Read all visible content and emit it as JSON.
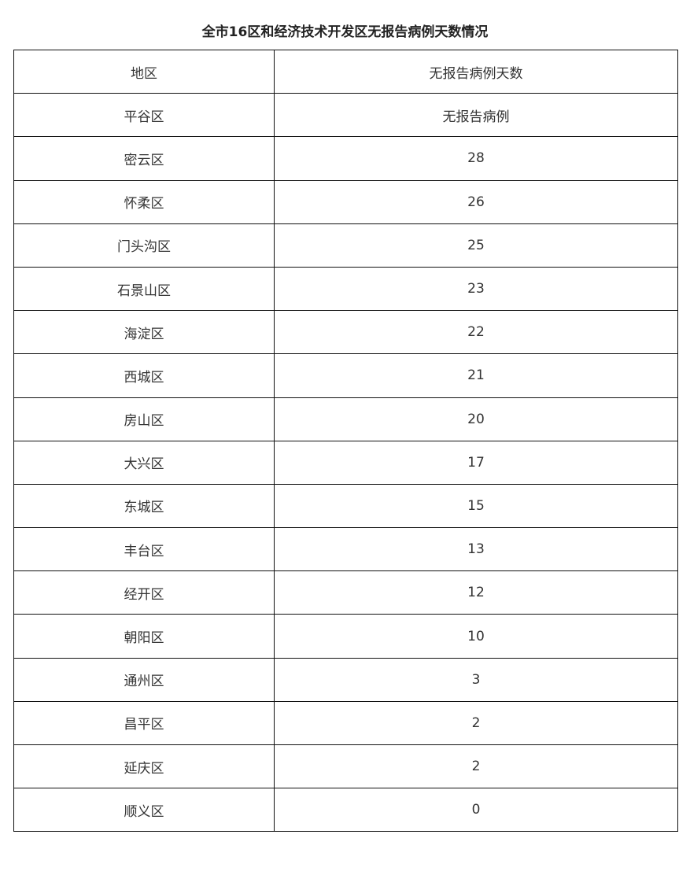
{
  "title": "全市16区和经济技术开发区无报告病例天数情况",
  "table": {
    "headers": [
      "地区",
      "无报告病例天数"
    ],
    "rows": [
      [
        "平谷区",
        "无报告病例"
      ],
      [
        "密云区",
        "28"
      ],
      [
        "怀柔区",
        "26"
      ],
      [
        "门头沟区",
        "25"
      ],
      [
        "石景山区",
        "23"
      ],
      [
        "海淀区",
        "22"
      ],
      [
        "西城区",
        "21"
      ],
      [
        "房山区",
        "20"
      ],
      [
        "大兴区",
        "17"
      ],
      [
        "东城区",
        "15"
      ],
      [
        "丰台区",
        "13"
      ],
      [
        "经开区",
        "12"
      ],
      [
        "朝阳区",
        "10"
      ],
      [
        "通州区",
        "3"
      ],
      [
        "昌平区",
        "2"
      ],
      [
        "延庆区",
        "2"
      ],
      [
        "顺义区",
        "0"
      ]
    ]
  }
}
